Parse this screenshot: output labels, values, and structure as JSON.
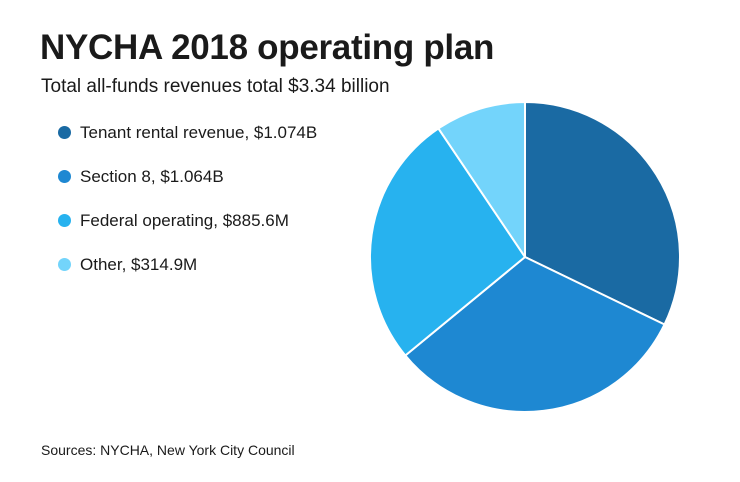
{
  "chart_data": {
    "type": "pie",
    "title": "NYCHA 2018 operating plan",
    "subtitle": "Total all-funds revenues total $3.34 billion",
    "slices": [
      {
        "label": "Tenant rental revenue, $1.074B",
        "value": 1.074,
        "color": "#1a6aa3"
      },
      {
        "label": "Section 8, $1.064B",
        "value": 1.064,
        "color": "#1e88d2"
      },
      {
        "label": "Federal operating, $885.6M",
        "value": 0.8856,
        "color": "#27b2ef"
      },
      {
        "label": "Other, $314.9M",
        "value": 0.3149,
        "color": "#73d4fb"
      }
    ],
    "legend_position": "left",
    "source": "Sources: NYCHA, New York City Council"
  }
}
